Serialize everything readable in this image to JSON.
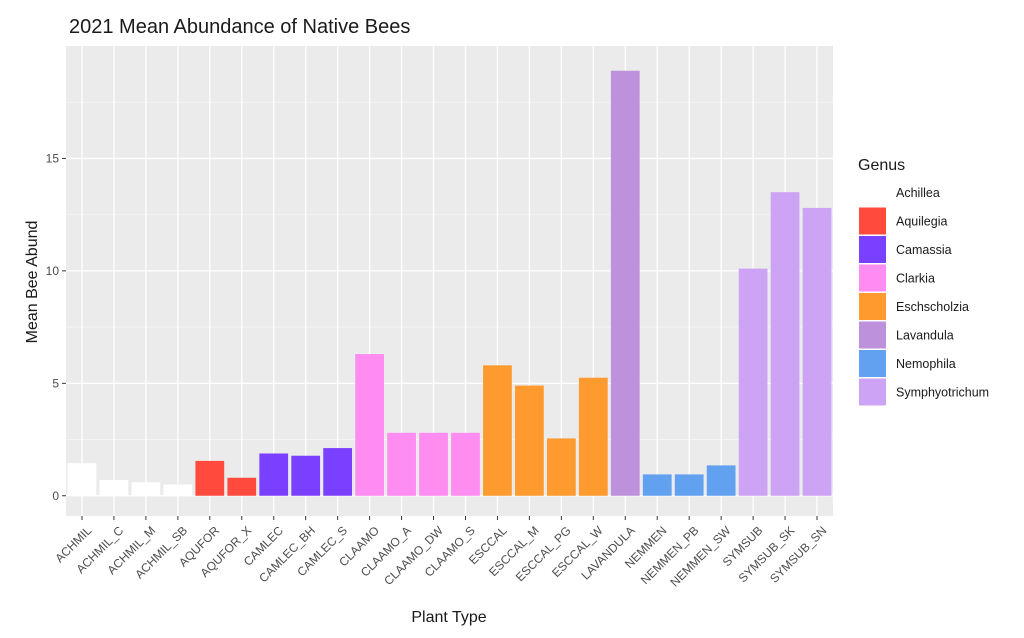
{
  "chart_data": {
    "type": "bar",
    "title": "2021 Mean Abundance of Native Bees",
    "xlabel": "Plant Type",
    "ylabel": "Mean Bee Abund",
    "ylim": [
      -0.9,
      20.0
    ],
    "yticks": [
      0,
      5,
      10,
      15
    ],
    "grid": true,
    "legend": {
      "title": "Genus",
      "position": "right",
      "entries": [
        {
          "name": "Achillea",
          "color": "#ffffff"
        },
        {
          "name": "Aquilegia",
          "color": "#ff4a3d"
        },
        {
          "name": "Camassia",
          "color": "#7a40ff"
        },
        {
          "name": "Clarkia",
          "color": "#ff8cf0"
        },
        {
          "name": "Eschscholzia",
          "color": "#ff9a2e"
        },
        {
          "name": "Lavandula",
          "color": "#bd91db"
        },
        {
          "name": "Nemophila",
          "color": "#62a0f0"
        },
        {
          "name": "Symphyotrichum",
          "color": "#cda3f5"
        }
      ]
    },
    "categories": [
      "ACHMIL",
      "ACHMIL_C",
      "ACHMIL_M",
      "ACHMIL_SB",
      "AQUFOR",
      "AQUFOR_X",
      "CAMLEC",
      "CAMLEC_BH",
      "CAMLEC_S",
      "CLAAMO",
      "CLAAMO_A",
      "CLAAMO_DW",
      "CLAAMO_S",
      "ESCCAL",
      "ESCCAL_M",
      "ESCCAL_PG",
      "ESCCAL_W",
      "LAVANDULA",
      "NEMMEN",
      "NEMMEN_PB",
      "NEMMEN_SW",
      "SYMSUB",
      "SYMSUB_SK",
      "SYMSUB_SN"
    ],
    "values": [
      1.45,
      0.7,
      0.6,
      0.5,
      1.55,
      0.8,
      1.88,
      1.78,
      2.12,
      6.3,
      2.8,
      2.8,
      2.8,
      5.8,
      4.9,
      2.55,
      5.25,
      18.9,
      0.95,
      0.95,
      1.35,
      10.1,
      13.5,
      12.8
    ],
    "genus": [
      "Achillea",
      "Achillea",
      "Achillea",
      "Achillea",
      "Aquilegia",
      "Aquilegia",
      "Camassia",
      "Camassia",
      "Camassia",
      "Clarkia",
      "Clarkia",
      "Clarkia",
      "Clarkia",
      "Eschscholzia",
      "Eschscholzia",
      "Eschscholzia",
      "Eschscholzia",
      "Lavandula",
      "Nemophila",
      "Nemophila",
      "Nemophila",
      "Symphyotrichum",
      "Symphyotrichum",
      "Symphyotrichum"
    ]
  }
}
